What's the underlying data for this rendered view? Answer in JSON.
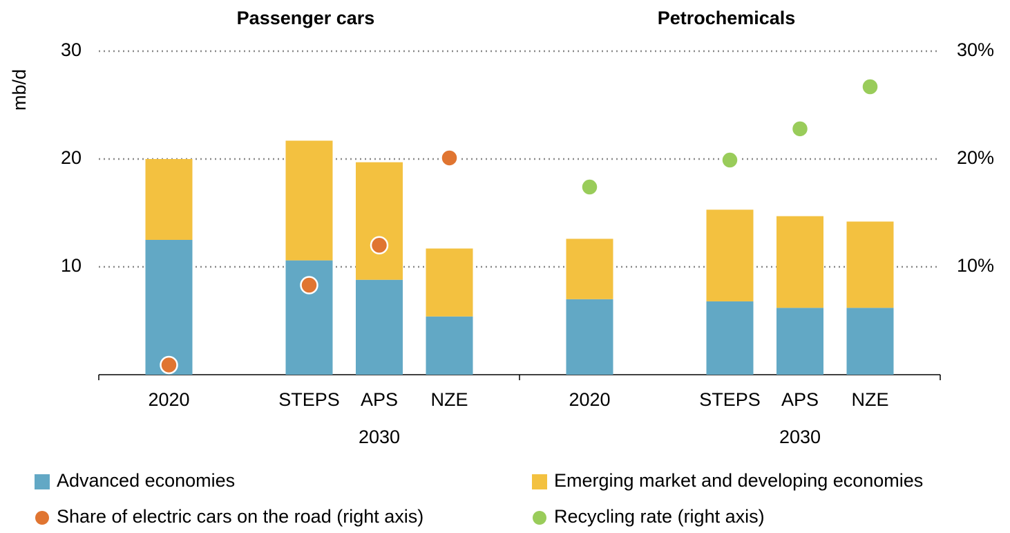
{
  "chart_data": [
    {
      "type": "bar",
      "title": "Passenger cars",
      "stacked": true,
      "ylabel": "mb/d",
      "categories": [
        "2020",
        "STEPS",
        "APS",
        "NZE"
      ],
      "group_labels": [
        null,
        "2030",
        "2030",
        "2030"
      ],
      "ylim": [
        0,
        30
      ],
      "yticks": [
        10,
        20,
        30
      ],
      "y2lim": [
        0,
        30
      ],
      "grid": true,
      "series": [
        {
          "name": "Advanced economies",
          "color": "#62a8c5",
          "values": [
            12.5,
            10.6,
            8.8,
            5.4
          ]
        },
        {
          "name": "Emerging market and developing economies",
          "color": "#f3c140",
          "values": [
            7.5,
            11.1,
            10.9,
            6.3
          ]
        },
        {
          "name": "Share of electric cars on the road (right axis)",
          "type": "scatter",
          "axis": "y2",
          "color": "#e07531",
          "values": [
            0.9,
            8.3,
            12.0,
            20.1
          ]
        }
      ]
    },
    {
      "type": "bar",
      "title": "Petrochemicals",
      "stacked": true,
      "categories": [
        "2020",
        "STEPS",
        "APS",
        "NZE"
      ],
      "group_labels": [
        null,
        "2030",
        "2030",
        "2030"
      ],
      "ylim": [
        0,
        30
      ],
      "y2lim": [
        0,
        30
      ],
      "y2ticks": [
        {
          "value": 10,
          "label": "10%"
        },
        {
          "value": 20,
          "label": "20%"
        },
        {
          "value": 30,
          "label": "30%"
        }
      ],
      "series": [
        {
          "name": "Advanced economies",
          "color": "#62a8c5",
          "values": [
            7.0,
            6.8,
            6.2,
            6.2
          ]
        },
        {
          "name": "Emerging market and developing economies",
          "color": "#f3c140",
          "values": [
            5.6,
            8.5,
            8.5,
            8.0
          ]
        },
        {
          "name": "Recycling rate (right axis)",
          "type": "scatter",
          "axis": "y2",
          "color": "#99cc5a",
          "values": [
            17.4,
            19.9,
            22.8,
            26.7
          ]
        }
      ]
    }
  ]
}
